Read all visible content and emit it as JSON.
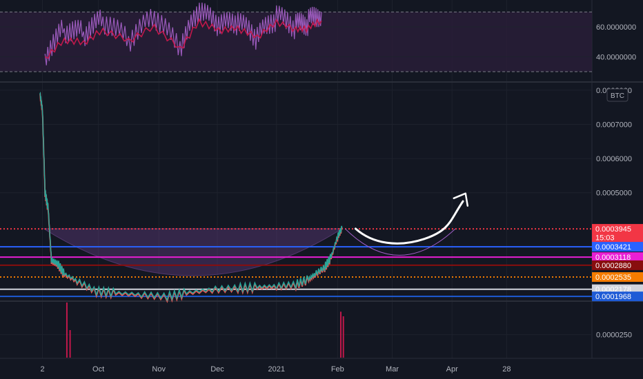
{
  "chart_data": [
    {
      "type": "line",
      "panel": "oscillator",
      "y_ticks": [
        "60.0000000",
        "40.0000000"
      ],
      "y_tick_values": [
        60,
        40
      ],
      "ylim": [
        24,
        78
      ],
      "reference_lines": [
        70,
        30
      ],
      "series": [
        {
          "color": "#9c5bbd",
          "points": [
            [
              0.07,
              42
            ],
            [
              0.1,
              58
            ],
            [
              0.13,
              55
            ],
            [
              0.16,
              64
            ],
            [
              0.2,
              50
            ],
            [
              0.24,
              66
            ],
            [
              0.28,
              45
            ],
            [
              0.31,
              70
            ],
            [
              0.34,
              60
            ],
            [
              0.37,
              62
            ],
            [
              0.4,
              52
            ],
            [
              0.43,
              66
            ],
            [
              0.46,
              60
            ],
            [
              0.48,
              63
            ],
            [
              0.5,
              70
            ]
          ]
        },
        {
          "color": "#c2184b",
          "points": [
            [
              0.07,
              40
            ],
            [
              0.1,
              52
            ],
            [
              0.13,
              50
            ],
            [
              0.16,
              58
            ],
            [
              0.2,
              51
            ],
            [
              0.24,
              60
            ],
            [
              0.28,
              45
            ],
            [
              0.31,
              63
            ],
            [
              0.34,
              57
            ],
            [
              0.37,
              58
            ],
            [
              0.4,
              52
            ],
            [
              0.43,
              62
            ],
            [
              0.46,
              57
            ],
            [
              0.48,
              58
            ],
            [
              0.5,
              64
            ]
          ]
        }
      ]
    },
    {
      "type": "line",
      "panel": "price",
      "unit": "BTC",
      "title": "",
      "y_ticks": [
        "0.0008000",
        "0.0007000",
        "0.0006000",
        "0.0005000"
      ],
      "y_tick_values": [
        0.0008,
        0.0007,
        0.0006,
        0.0005
      ],
      "ylim": [
        0.000185,
        0.00082
      ],
      "x_ticks": [
        "2",
        "Oct",
        "Nov",
        "Dec",
        "2021",
        "Feb",
        "Mar",
        "Apr",
        "28"
      ],
      "x_tick_positions": [
        0.066,
        0.153,
        0.247,
        0.338,
        0.43,
        0.525,
        0.61,
        0.703,
        0.788
      ],
      "price_levels": [
        {
          "label": "0.0003945",
          "value": 0.0003945,
          "color": "#f23645",
          "line": "dotted"
        },
        {
          "label": "15:03",
          "value": 0.000369,
          "color": "#f23645",
          "line": "none"
        },
        {
          "label": "0.0003421",
          "value": 0.0003421,
          "color": "#2962ff",
          "line": "solid"
        },
        {
          "label": "0.0003118",
          "value": 0.0003118,
          "color": "#e91ed4",
          "line": "solid"
        },
        {
          "label": "0.0002880",
          "value": 0.000288,
          "color": "#880e0e",
          "line": "solid"
        },
        {
          "label": "0.0002535",
          "value": 0.0002535,
          "color": "#f57c00",
          "line": "dotted"
        },
        {
          "label": "0.0002178",
          "value": 0.0002178,
          "color": "#d1d4dc",
          "line": "solid"
        },
        {
          "label": "0.0001968",
          "value": 0.0001968,
          "color": "#1e5bd6",
          "line": "solid"
        }
      ],
      "series": [
        {
          "color": "#26a69a",
          "points": [
            [
              0.062,
              0.00079
            ],
            [
              0.066,
              0.00074
            ],
            [
              0.07,
              0.0005
            ],
            [
              0.075,
              0.00045
            ],
            [
              0.08,
              0.0003
            ],
            [
              0.09,
              0.00029
            ],
            [
              0.1,
              0.00026
            ],
            [
              0.12,
              0.00024
            ],
            [
              0.15,
              0.00021
            ],
            [
              0.18,
              0.000205
            ],
            [
              0.22,
              0.0002
            ],
            [
              0.26,
              0.000195
            ],
            [
              0.29,
              0.000205
            ],
            [
              0.33,
              0.000215
            ],
            [
              0.37,
              0.00022
            ],
            [
              0.4,
              0.000222
            ],
            [
              0.43,
              0.000225
            ],
            [
              0.46,
              0.00023
            ],
            [
              0.48,
              0.000245
            ],
            [
              0.49,
              0.00026
            ],
            [
              0.505,
              0.00028
            ],
            [
              0.515,
              0.00031
            ],
            [
              0.525,
              0.00037
            ],
            [
              0.532,
              0.000395
            ]
          ]
        }
      ]
    },
    {
      "type": "bar",
      "panel": "volume",
      "y_ticks": [
        "0.0000250"
      ],
      "y_tick_values": [
        2.5e-05
      ],
      "ylim": [
        0,
        6e-05
      ],
      "bars": [
        {
          "x": 0.104,
          "value": 6e-05,
          "color": "#c2184b"
        },
        {
          "x": 0.109,
          "value": 3e-05,
          "color": "#c2184b"
        },
        {
          "x": 0.53,
          "value": 5e-05,
          "color": "#c2184b"
        },
        {
          "x": 0.534,
          "value": 4.5e-05,
          "color": "#c2184b"
        }
      ]
    }
  ]
}
